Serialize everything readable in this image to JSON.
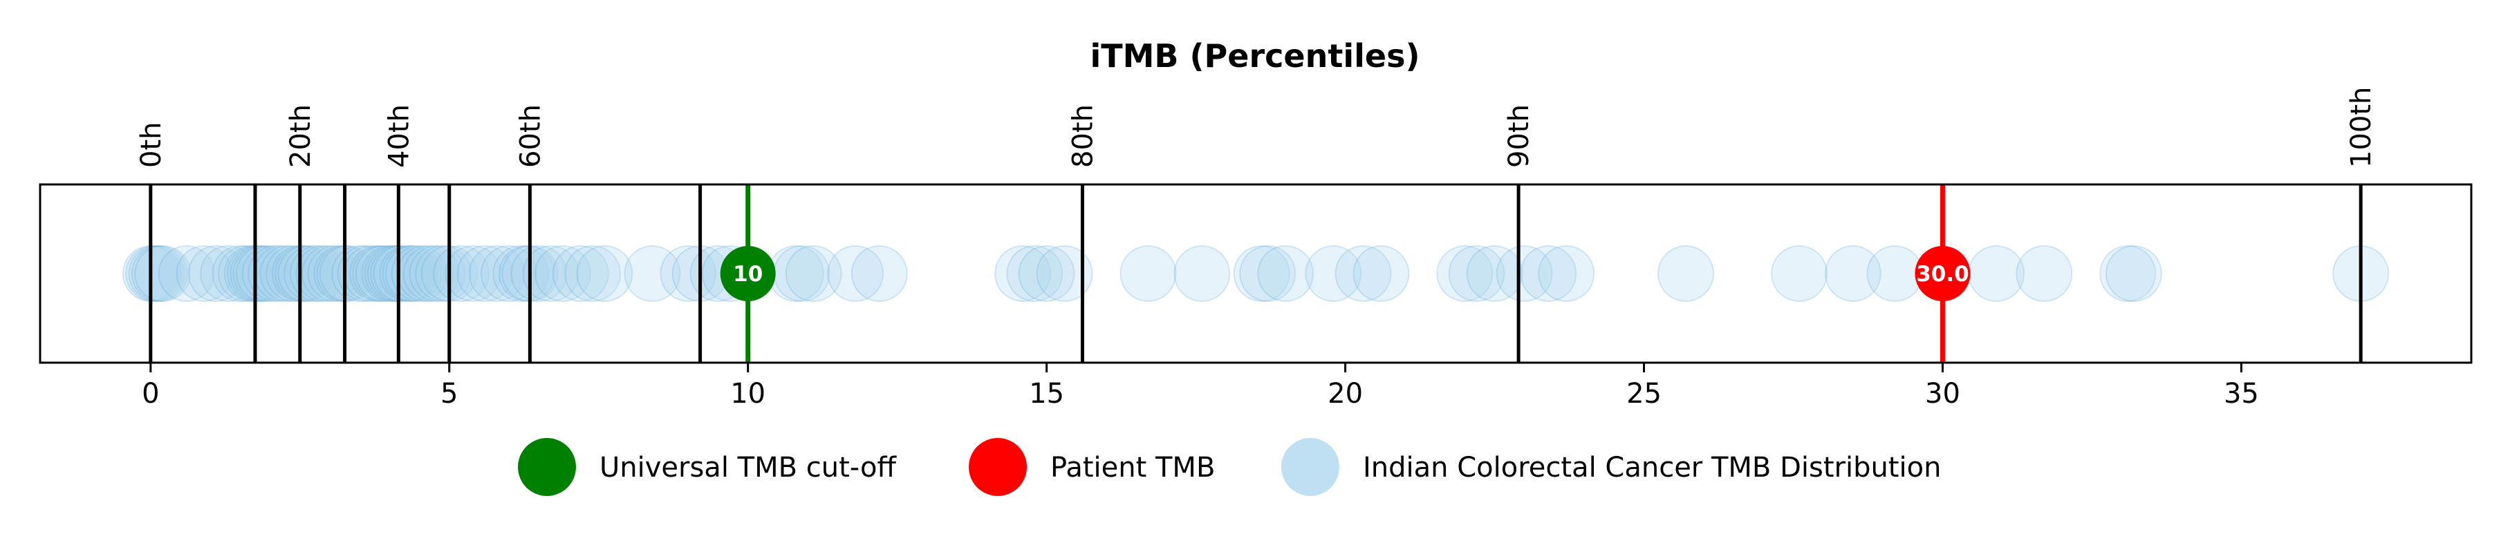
{
  "chart_data": {
    "type": "scatter",
    "title": "iTMB (Percentiles)",
    "xlabel": "",
    "ylabel": "",
    "xlim": [
      -1.85,
      38.85
    ],
    "x_ticks": [
      0,
      5,
      10,
      15,
      20,
      25,
      30,
      35
    ],
    "grid": false,
    "legend_position": "bottom-center",
    "percentile_markers": [
      {
        "label": "0th",
        "x": 0.0
      },
      {
        "label": "",
        "x": 1.75
      },
      {
        "label": "20th",
        "x": 2.5
      },
      {
        "label": "",
        "x": 3.25
      },
      {
        "label": "40th",
        "x": 4.15
      },
      {
        "label": "",
        "x": 5.0
      },
      {
        "label": "60th",
        "x": 6.35
      },
      {
        "label": "",
        "x": 9.2
      },
      {
        "label": "80th",
        "x": 15.6
      },
      {
        "label": "90th",
        "x": 22.9
      },
      {
        "label": "100th",
        "x": 37.0
      }
    ],
    "cutoff": {
      "name": "Universal TMB cut-off",
      "value": 10,
      "label": "10",
      "color": "#008000"
    },
    "patient": {
      "name": "Patient TMB",
      "value": 30.0,
      "label": "30.0",
      "color": "#ff0000"
    },
    "distribution": {
      "name": "Indian Colorectal Cancer TMB Distribution",
      "color": "#a9d4ee",
      "edge_color": "#4f9fd6",
      "values": [
        0.0,
        0.05,
        0.1,
        0.15,
        0.2,
        0.6,
        0.9,
        1.1,
        1.3,
        1.5,
        1.6,
        1.7,
        1.75,
        1.8,
        1.85,
        1.9,
        2.0,
        2.1,
        2.2,
        2.3,
        2.4,
        2.5,
        2.55,
        2.6,
        2.7,
        2.8,
        2.9,
        3.0,
        3.1,
        3.2,
        3.25,
        3.3,
        3.5,
        3.6,
        3.7,
        3.8,
        3.85,
        3.9,
        4.0,
        4.05,
        4.1,
        4.15,
        4.2,
        4.3,
        4.35,
        4.4,
        4.5,
        4.6,
        4.7,
        4.8,
        4.9,
        5.0,
        5.2,
        5.4,
        5.6,
        5.8,
        6.0,
        6.2,
        6.3,
        6.35,
        6.5,
        6.7,
        6.9,
        7.2,
        7.4,
        7.6,
        8.4,
        9.0,
        9.2,
        9.5,
        9.7,
        10.8,
        10.9,
        11.1,
        11.8,
        12.2,
        14.6,
        14.8,
        15.0,
        15.3,
        16.7,
        17.6,
        18.6,
        18.7,
        19.0,
        19.8,
        20.3,
        20.6,
        22.0,
        22.2,
        22.5,
        23.0,
        23.4,
        23.7,
        25.7,
        27.6,
        28.5,
        29.2,
        30.9,
        31.7,
        33.1,
        33.2,
        37.0
      ]
    },
    "legend": [
      {
        "label": "Universal TMB cut-off",
        "color": "#008000"
      },
      {
        "label": "Patient TMB",
        "color": "#ff0000"
      },
      {
        "label": "Indian Colorectal Cancer TMB Distribution",
        "color": "#a9d4ee"
      }
    ]
  }
}
